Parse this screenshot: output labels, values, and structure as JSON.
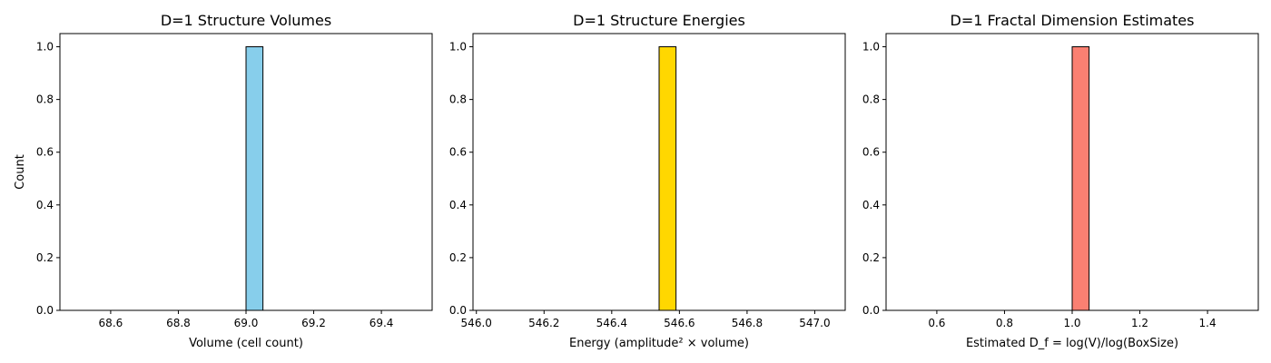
{
  "chart_data": [
    {
      "type": "bar",
      "title": "D=1 Structure Volumes",
      "xlabel": "Volume (cell count)",
      "ylabel": "Count",
      "bin_edges": [
        68.5,
        68.55,
        68.6,
        68.65,
        68.7,
        68.75,
        68.8,
        68.85,
        68.9,
        68.95,
        69.0,
        69.05,
        69.1,
        69.15,
        69.2,
        69.25,
        69.3,
        69.35,
        69.4,
        69.45,
        69.5
      ],
      "values": [
        0,
        0,
        0,
        0,
        0,
        0,
        0,
        0,
        0,
        0,
        1,
        0,
        0,
        0,
        0,
        0,
        0,
        0,
        0,
        0
      ],
      "xlim": [
        68.45,
        69.55
      ],
      "ylim": [
        0,
        1.05
      ],
      "xticks": [
        68.6,
        68.8,
        69.0,
        69.2,
        69.4
      ],
      "xtick_labels": [
        "68.6",
        "68.8",
        "69.0",
        "69.2",
        "69.4"
      ],
      "yticks": [
        0.0,
        0.2,
        0.4,
        0.6,
        0.8,
        1.0
      ],
      "ytick_labels": [
        "0.0",
        "0.2",
        "0.4",
        "0.6",
        "0.8",
        "1.0"
      ],
      "bar_color": "#87ceeb",
      "edge_color": "#000000"
    },
    {
      "type": "bar",
      "title": "D=1 Structure Energies",
      "xlabel": "Energy (amplitude² × volume)",
      "ylabel": "",
      "bin_edges": [
        546.04,
        546.09,
        546.14,
        546.19,
        546.24,
        546.29,
        546.34,
        546.39,
        546.44,
        546.49,
        546.54,
        546.59,
        546.64,
        546.69,
        546.74,
        546.79,
        546.84,
        546.89,
        546.94,
        546.99,
        547.04
      ],
      "values": [
        0,
        0,
        0,
        0,
        0,
        0,
        0,
        0,
        0,
        0,
        1,
        0,
        0,
        0,
        0,
        0,
        0,
        0,
        0,
        0
      ],
      "xlim": [
        545.99,
        547.09
      ],
      "ylim": [
        0,
        1.05
      ],
      "xticks": [
        546.0,
        546.2,
        546.4,
        546.6,
        546.8,
        547.0
      ],
      "xtick_labels": [
        "546.0",
        "546.2",
        "546.4",
        "546.6",
        "546.8",
        "547.0"
      ],
      "yticks": [
        0.0,
        0.2,
        0.4,
        0.6,
        0.8,
        1.0
      ],
      "ytick_labels": [
        "0.0",
        "0.2",
        "0.4",
        "0.6",
        "0.8",
        "1.0"
      ],
      "bar_color": "#ffd700",
      "edge_color": "#000000"
    },
    {
      "type": "bar",
      "title": "D=1 Fractal Dimension Estimates",
      "xlabel": "Estimated D_f = log(V)/log(BoxSize)",
      "ylabel": "",
      "bin_edges": [
        0.5,
        0.55,
        0.6,
        0.65,
        0.7,
        0.75,
        0.8,
        0.85,
        0.9,
        0.95,
        1.0,
        1.05,
        1.1,
        1.15,
        1.2,
        1.25,
        1.3,
        1.35,
        1.4,
        1.45,
        1.5
      ],
      "values": [
        0,
        0,
        0,
        0,
        0,
        0,
        0,
        0,
        0,
        0,
        1,
        0,
        0,
        0,
        0,
        0,
        0,
        0,
        0,
        0
      ],
      "xlim": [
        0.45,
        1.55
      ],
      "ylim": [
        0,
        1.05
      ],
      "xticks": [
        0.6,
        0.8,
        1.0,
        1.2,
        1.4
      ],
      "xtick_labels": [
        "0.6",
        "0.8",
        "1.0",
        "1.2",
        "1.4"
      ],
      "yticks": [
        0.0,
        0.2,
        0.4,
        0.6,
        0.8,
        1.0
      ],
      "ytick_labels": [
        "0.0",
        "0.2",
        "0.4",
        "0.6",
        "0.8",
        "1.0"
      ],
      "bar_color": "#fa8072",
      "edge_color": "#000000"
    }
  ]
}
